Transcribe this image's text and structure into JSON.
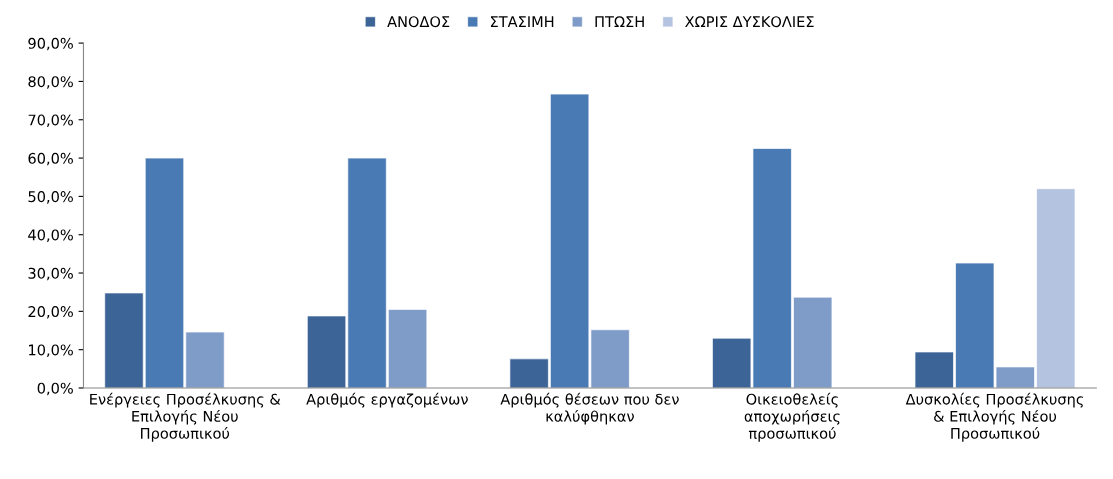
{
  "chart_data": {
    "type": "bar",
    "categories": [
      "Ενέργειες Προσέλκυσης &\nΕπιλογής Νέου\nΠροσωπικού",
      "Αριθμός εργαζομένων",
      "Αριθμός θέσεων που δεν\nκαλύφθηκαν",
      "Οικειοθελείς\nαποχωρήσεις\nπροσωπικού",
      "Δυσκολίες Προσέλκυσης\n& Επιλογής Νέου\nΠροσωπικού"
    ],
    "series": [
      {
        "name": "ΑΝΟΔΟΣ",
        "color": "#3c6497",
        "values": [
          24.8,
          18.8,
          7.6,
          13.0,
          9.4
        ]
      },
      {
        "name": "ΣΤΑΣΙΜΗ",
        "color": "#4a7ab4",
        "values": [
          60.0,
          60.0,
          76.7,
          62.5,
          32.6
        ]
      },
      {
        "name": "ΠΤΩΣΗ",
        "color": "#7f9cc9",
        "values": [
          14.6,
          20.5,
          15.2,
          23.7,
          5.5
        ]
      },
      {
        "name": "ΧΩΡΙΣ ΔΥΣΚΟΛΙΕΣ",
        "color": "#b4c3e0",
        "values": [
          null,
          null,
          null,
          null,
          52.0
        ]
      }
    ],
    "ylim": [
      0,
      90
    ],
    "yticks": [
      {
        "value": 0,
        "label": "0,0%"
      },
      {
        "value": 10,
        "label": "10,0%"
      },
      {
        "value": 20,
        "label": "20,0%"
      },
      {
        "value": 30,
        "label": "30,0%"
      },
      {
        "value": 40,
        "label": "40,0%"
      },
      {
        "value": 50,
        "label": "50,0%"
      },
      {
        "value": 60,
        "label": "60,0%"
      },
      {
        "value": 70,
        "label": "70,0%"
      },
      {
        "value": 80,
        "label": "80,0%"
      },
      {
        "value": 90,
        "label": "90,0%"
      }
    ],
    "grid": false,
    "legend": "top"
  }
}
